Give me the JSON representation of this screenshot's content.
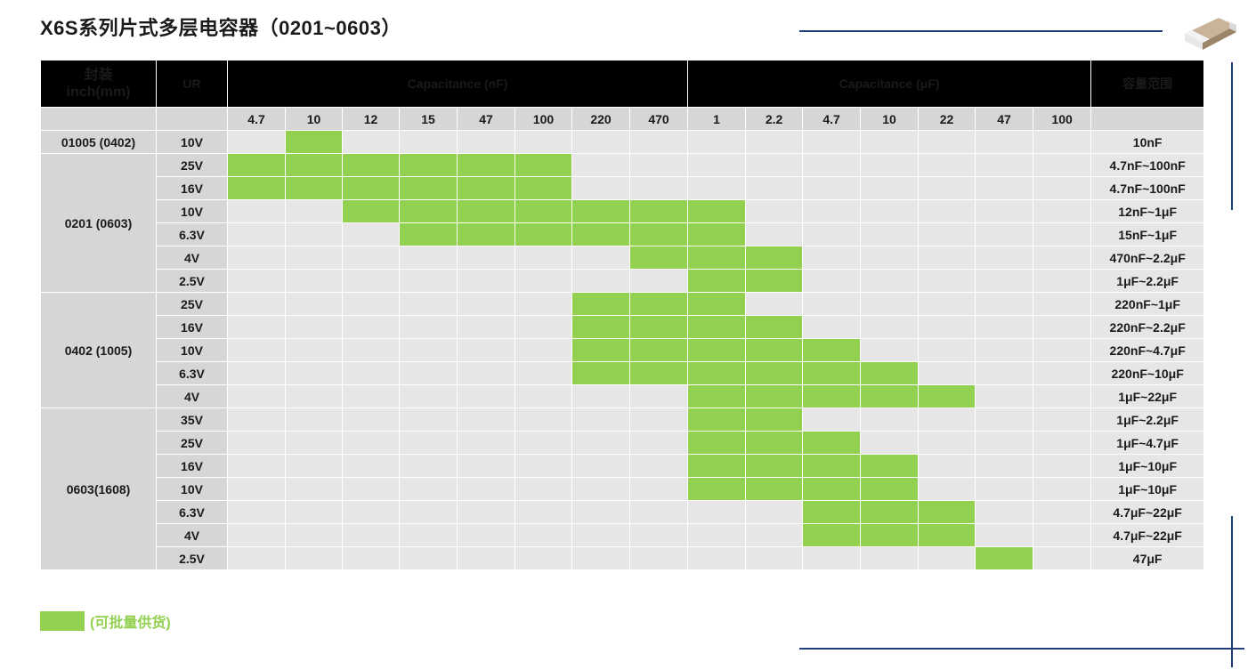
{
  "title": "X6S系列片式多层电容器（0201~0603）",
  "headers": {
    "package": [
      "封装",
      "inch(mm)"
    ],
    "ur": "UR",
    "cap_nf": "Capacitance (nF)",
    "cap_uf": "Capacitance (μF)",
    "range": "容量范围"
  },
  "capacitance_columns": [
    "4.7",
    "10",
    "12",
    "15",
    "47",
    "100",
    "220",
    "470",
    "1",
    "2.2",
    "4.7",
    "10",
    "22",
    "47",
    "100"
  ],
  "groups": [
    {
      "package": "01005 (0402)",
      "rows": [
        {
          "ur": "10V",
          "on": [
            1
          ],
          "range": "10nF"
        }
      ]
    },
    {
      "package": "0201 (0603)",
      "rows": [
        {
          "ur": "25V",
          "on": [
            0,
            1,
            2,
            3,
            4,
            5
          ],
          "range": "4.7nF~100nF"
        },
        {
          "ur": "16V",
          "on": [
            0,
            1,
            2,
            3,
            4,
            5
          ],
          "range": "4.7nF~100nF"
        },
        {
          "ur": "10V",
          "on": [
            2,
            3,
            4,
            5,
            6,
            7,
            8
          ],
          "range": "12nF~1μF"
        },
        {
          "ur": "6.3V",
          "on": [
            3,
            4,
            5,
            6,
            7,
            8
          ],
          "range": "15nF~1μF"
        },
        {
          "ur": "4V",
          "on": [
            7,
            8,
            9
          ],
          "range": "470nF~2.2μF"
        },
        {
          "ur": "2.5V",
          "on": [
            8,
            9
          ],
          "range": "1μF~2.2μF"
        }
      ]
    },
    {
      "package": "0402 (1005)",
      "rows": [
        {
          "ur": "25V",
          "on": [
            6,
            7,
            8
          ],
          "range": "220nF~1μF"
        },
        {
          "ur": "16V",
          "on": [
            6,
            7,
            8,
            9
          ],
          "range": "220nF~2.2μF"
        },
        {
          "ur": "10V",
          "on": [
            6,
            7,
            8,
            9,
            10
          ],
          "range": "220nF~4.7μF"
        },
        {
          "ur": "6.3V",
          "on": [
            6,
            7,
            8,
            9,
            10,
            11
          ],
          "range": "220nF~10μF"
        },
        {
          "ur": "4V",
          "on": [
            8,
            9,
            10,
            11,
            12
          ],
          "range": "1μF~22μF"
        }
      ]
    },
    {
      "package": "0603(1608)",
      "rows": [
        {
          "ur": "35V",
          "on": [
            8,
            9
          ],
          "range": "1μF~2.2μF"
        },
        {
          "ur": "25V",
          "on": [
            8,
            9,
            10
          ],
          "range": "1μF~4.7μF"
        },
        {
          "ur": "16V",
          "on": [
            8,
            9,
            10,
            11
          ],
          "range": "1μF~10μF"
        },
        {
          "ur": "10V",
          "on": [
            8,
            9,
            10,
            11
          ],
          "range": "1μF~10μF"
        },
        {
          "ur": "6.3V",
          "on": [
            10,
            11,
            12
          ],
          "range": "4.7μF~22μF"
        },
        {
          "ur": "4V",
          "on": [
            10,
            11,
            12
          ],
          "range": "4.7μF~22μF"
        },
        {
          "ur": "2.5V",
          "on": [
            13
          ],
          "range": "47μF"
        }
      ]
    }
  ],
  "legend": {
    "text": "(可批量供货)",
    "color": "#92d050"
  },
  "colors": {
    "available": "#92d050",
    "cell": "#e6e6e6",
    "label": "#d6d6d6",
    "header": "#000000",
    "accent": "#1f3e78"
  }
}
